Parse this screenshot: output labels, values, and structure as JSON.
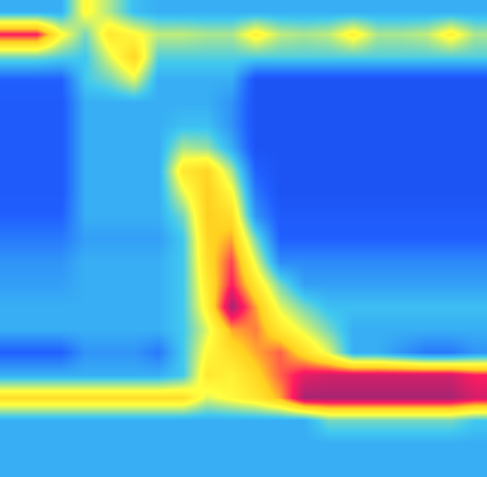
{
  "chart_data": {
    "type": "heatmap",
    "tick_labels": false,
    "zlim": [
      0,
      100
    ],
    "z": [
      [
        35,
        35,
        35,
        60,
        50,
        38,
        35,
        35,
        35,
        35,
        35,
        35,
        35,
        35,
        35,
        35,
        35,
        35,
        35,
        35
      ],
      [
        85,
        85,
        60,
        45,
        65,
        60,
        52,
        52,
        50,
        50,
        62,
        52,
        50,
        52,
        62,
        50,
        50,
        52,
        62,
        50
      ],
      [
        45,
        45,
        42,
        40,
        55,
        70,
        42,
        42,
        42,
        42,
        42,
        42,
        42,
        42,
        42,
        42,
        42,
        42,
        42,
        42
      ],
      [
        20,
        20,
        20,
        40,
        45,
        55,
        35,
        35,
        35,
        35,
        15,
        15,
        15,
        15,
        15,
        15,
        15,
        15,
        15,
        15
      ],
      [
        18,
        18,
        18,
        35,
        35,
        35,
        35,
        35,
        35,
        30,
        15,
        15,
        15,
        15,
        15,
        15,
        15,
        15,
        15,
        15
      ],
      [
        18,
        18,
        18,
        35,
        35,
        35,
        35,
        38,
        38,
        30,
        15,
        15,
        15,
        15,
        15,
        15,
        15,
        15,
        15,
        15
      ],
      [
        18,
        18,
        18,
        35,
        35,
        35,
        35,
        50,
        48,
        35,
        15,
        15,
        15,
        15,
        15,
        15,
        15,
        15,
        15,
        15
      ],
      [
        18,
        18,
        18,
        35,
        35,
        35,
        35,
        65,
        70,
        50,
        20,
        15,
        15,
        15,
        15,
        15,
        15,
        15,
        15,
        15
      ],
      [
        18,
        18,
        18,
        35,
        35,
        35,
        35,
        55,
        72,
        60,
        25,
        15,
        15,
        15,
        15,
        15,
        15,
        15,
        15,
        15
      ],
      [
        20,
        20,
        20,
        35,
        35,
        35,
        35,
        45,
        72,
        68,
        30,
        18,
        18,
        18,
        18,
        18,
        18,
        18,
        18,
        18
      ],
      [
        25,
        25,
        25,
        32,
        32,
        32,
        32,
        40,
        70,
        75,
        45,
        20,
        20,
        20,
        20,
        20,
        20,
        20,
        20,
        20
      ],
      [
        30,
        30,
        30,
        35,
        35,
        35,
        35,
        40,
        68,
        82,
        55,
        28,
        28,
        28,
        28,
        28,
        28,
        28,
        28,
        28
      ],
      [
        32,
        32,
        32,
        35,
        35,
        35,
        35,
        40,
        65,
        85,
        65,
        45,
        32,
        32,
        32,
        32,
        32,
        32,
        32,
        32
      ],
      [
        35,
        35,
        35,
        35,
        35,
        35,
        35,
        40,
        62,
        95,
        75,
        55,
        45,
        38,
        38,
        38,
        38,
        38,
        38,
        38
      ],
      [
        35,
        35,
        35,
        35,
        35,
        35,
        35,
        40,
        55,
        75,
        78,
        65,
        55,
        45,
        35,
        35,
        35,
        35,
        35,
        35
      ],
      [
        20,
        20,
        20,
        30,
        30,
        30,
        25,
        40,
        60,
        68,
        75,
        80,
        68,
        55,
        35,
        35,
        30,
        25,
        25,
        30
      ],
      [
        35,
        35,
        35,
        35,
        35,
        35,
        35,
        40,
        65,
        62,
        70,
        80,
        88,
        90,
        90,
        90,
        90,
        90,
        90,
        85
      ],
      [
        68,
        68,
        68,
        68,
        68,
        68,
        68,
        68,
        55,
        60,
        65,
        75,
        95,
        95,
        95,
        95,
        95,
        95,
        95,
        90
      ],
      [
        35,
        35,
        35,
        35,
        35,
        35,
        35,
        35,
        35,
        35,
        35,
        35,
        35,
        45,
        45,
        45,
        45,
        45,
        45,
        40
      ],
      [
        35,
        35,
        35,
        35,
        35,
        35,
        35,
        35,
        35,
        35,
        35,
        35,
        35,
        35,
        35,
        35,
        35,
        35,
        35,
        35
      ],
      [
        35,
        35,
        35,
        35,
        35,
        35,
        35,
        35,
        35,
        35,
        35,
        35,
        35,
        35,
        35,
        35,
        35,
        35,
        35,
        35
      ]
    ]
  }
}
